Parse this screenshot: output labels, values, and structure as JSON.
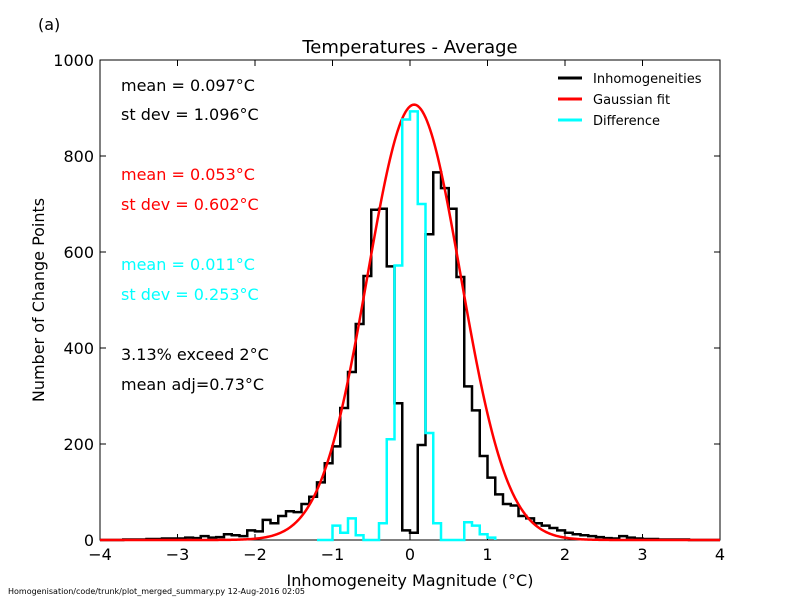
{
  "panel_label": "(a)",
  "footer": "Homogenisation/code/trunk/plot_merged_summary.py   12-Aug-2016 02:05",
  "stats": {
    "black_mean": "mean =  0.097°C",
    "black_stdev": "st dev =  1.096°C",
    "red_mean": "mean =  0.053°C",
    "red_stdev": "st dev =  0.602°C",
    "cyan_mean": "mean =  0.011°C",
    "cyan_stdev": "st dev =  0.253°C",
    "exceed": "3.13% exceed 2°C",
    "mean_adj": "mean adj=0.73°C"
  },
  "colors": {
    "black": "#000000",
    "red": "#ff0000",
    "cyan": "#00ffff"
  },
  "chart_data": {
    "type": "line",
    "title": "Temperatures - Average",
    "xlabel": "Inhomogeneity Magnitude (°C)",
    "ylabel": "Number of Change Points",
    "xlim": [
      -4,
      4
    ],
    "ylim": [
      0,
      1000
    ],
    "xticks": [
      -4,
      -3,
      -2,
      -1,
      0,
      1,
      2,
      3,
      4
    ],
    "xtick_labels": [
      "−4",
      "−3",
      "−2",
      "−1",
      "0",
      "1",
      "2",
      "3",
      "4"
    ],
    "yticks": [
      0,
      200,
      400,
      600,
      800,
      1000
    ],
    "ytick_labels": [
      "0",
      "200",
      "400",
      "600",
      "800",
      "1000"
    ],
    "legend_position": "top-right",
    "bin_width": 0.1,
    "series": [
      {
        "name": "Inhomogeneities",
        "color": "#000000",
        "style": "step",
        "x": [
          -4.0,
          -3.9,
          -3.8,
          -3.7,
          -3.6,
          -3.5,
          -3.4,
          -3.3,
          -3.2,
          -3.1,
          -3.0,
          -2.9,
          -2.8,
          -2.7,
          -2.6,
          -2.5,
          -2.4,
          -2.3,
          -2.2,
          -2.1,
          -2.0,
          -1.9,
          -1.8,
          -1.7,
          -1.6,
          -1.5,
          -1.4,
          -1.3,
          -1.2,
          -1.1,
          -1.0,
          -0.9,
          -0.8,
          -0.7,
          -0.6,
          -0.5,
          -0.4,
          -0.3,
          -0.2,
          -0.1,
          0.0,
          0.1,
          0.2,
          0.3,
          0.4,
          0.5,
          0.6,
          0.7,
          0.8,
          0.9,
          1.0,
          1.1,
          1.2,
          1.3,
          1.4,
          1.5,
          1.6,
          1.7,
          1.8,
          1.9,
          2.0,
          2.1,
          2.2,
          2.3,
          2.4,
          2.5,
          2.6,
          2.7,
          2.8,
          2.9,
          3.0,
          3.1,
          3.2,
          3.3,
          3.4,
          3.5,
          3.6,
          3.7,
          3.8,
          3.9
        ],
        "values": [
          0,
          0,
          0,
          1,
          1,
          1,
          2,
          2,
          3,
          3,
          3,
          5,
          4,
          8,
          5,
          6,
          12,
          10,
          8,
          20,
          18,
          42,
          35,
          50,
          60,
          58,
          75,
          90,
          120,
          160,
          195,
          275,
          350,
          450,
          550,
          688,
          690,
          570,
          285,
          20,
          15,
          198,
          637,
          766,
          733,
          690,
          548,
          320,
          270,
          175,
          130,
          95,
          75,
          72,
          50,
          45,
          35,
          30,
          25,
          20,
          15,
          12,
          10,
          8,
          6,
          4,
          3,
          8,
          5,
          3,
          2,
          2,
          1,
          1,
          1,
          1,
          0,
          0,
          0,
          0
        ]
      },
      {
        "name": "Gaussian fit",
        "color": "#ff0000",
        "style": "gaussian",
        "peak": 907,
        "mean": 0.053,
        "stdev": 0.602
      },
      {
        "name": "Difference",
        "color": "#00ffff",
        "style": "step",
        "x": [
          -1.2,
          -1.1,
          -1.0,
          -0.9,
          -0.8,
          -0.7,
          -0.6,
          -0.5,
          -0.4,
          -0.3,
          -0.2,
          -0.1,
          0.0,
          0.1,
          0.2,
          0.3,
          0.4,
          0.5,
          0.6,
          0.7,
          0.8,
          0.9,
          1.0
        ],
        "values": [
          0,
          0,
          30,
          15,
          45,
          10,
          0,
          0,
          35,
          210,
          572,
          876,
          893,
          700,
          223,
          35,
          0,
          0,
          0,
          37,
          30,
          12,
          5
        ]
      }
    ]
  }
}
